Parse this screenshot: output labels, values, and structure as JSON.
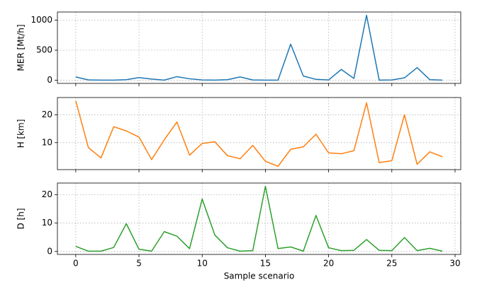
{
  "chart_data": [
    {
      "type": "line",
      "ylabel": "MER [Mt/h]",
      "color": "#1f77b4",
      "grid": true,
      "x": [
        0,
        1,
        2,
        3,
        4,
        5,
        6,
        7,
        8,
        9,
        10,
        11,
        12,
        13,
        14,
        15,
        16,
        17,
        18,
        19,
        20,
        21,
        22,
        23,
        24,
        25,
        26,
        27,
        28,
        29
      ],
      "values": [
        55,
        5,
        3,
        2,
        10,
        45,
        20,
        2,
        60,
        25,
        5,
        3,
        10,
        55,
        5,
        3,
        3,
        600,
        70,
        15,
        5,
        180,
        30,
        1080,
        3,
        5,
        40,
        210,
        10,
        3
      ],
      "xlim": [
        -1.45,
        30.45
      ],
      "xticks": [
        0,
        5,
        10,
        15,
        20,
        25,
        30
      ],
      "ylim": [
        -52,
        1134
      ],
      "yticks": [
        0,
        500,
        1000
      ]
    },
    {
      "type": "line",
      "ylabel": "H [km]",
      "color": "#ff7f0e",
      "grid": true,
      "x": [
        0,
        1,
        2,
        3,
        4,
        5,
        6,
        7,
        8,
        9,
        10,
        11,
        12,
        13,
        14,
        15,
        16,
        17,
        18,
        19,
        20,
        21,
        22,
        23,
        24,
        25,
        26,
        27,
        28,
        29
      ],
      "values": [
        25,
        8.2,
        4.5,
        15.7,
        14.2,
        12,
        3.9,
        11,
        17.4,
        5.5,
        9.7,
        10.3,
        5.3,
        4.2,
        9,
        3.3,
        1.5,
        7.6,
        8.5,
        13,
        6.3,
        6,
        7.1,
        24.3,
        2.8,
        3.5,
        20,
        2.2,
        6.7,
        4.9
      ],
      "xlim": [
        -1.45,
        30.45
      ],
      "xticks": [
        0,
        5,
        10,
        15,
        20,
        25,
        30
      ],
      "ylim": [
        0.3,
        26.2
      ],
      "yticks": [
        10,
        20
      ]
    },
    {
      "type": "line",
      "ylabel": "D [h]",
      "xlabel": "Sample scenario",
      "color": "#2ca02c",
      "grid": true,
      "x": [
        0,
        1,
        2,
        3,
        4,
        5,
        6,
        7,
        8,
        9,
        10,
        11,
        12,
        13,
        14,
        15,
        16,
        17,
        18,
        19,
        20,
        21,
        22,
        23,
        24,
        25,
        26,
        27,
        28,
        29
      ],
      "values": [
        1.8,
        0.1,
        0.1,
        1.4,
        9.8,
        0.8,
        0.1,
        7,
        5.4,
        1,
        18.5,
        5.8,
        1.3,
        0.1,
        0.3,
        23,
        1,
        1.6,
        0.1,
        12.7,
        1.3,
        0.3,
        0.4,
        4.2,
        0.4,
        0.3,
        4.9,
        0.3,
        1.1,
        0.1
      ],
      "xlim": [
        -1.45,
        30.45
      ],
      "xticks": [
        0,
        5,
        10,
        15,
        20,
        25,
        30
      ],
      "ylim": [
        -1.05,
        24.15
      ],
      "yticks": [
        0,
        10,
        20
      ]
    }
  ]
}
